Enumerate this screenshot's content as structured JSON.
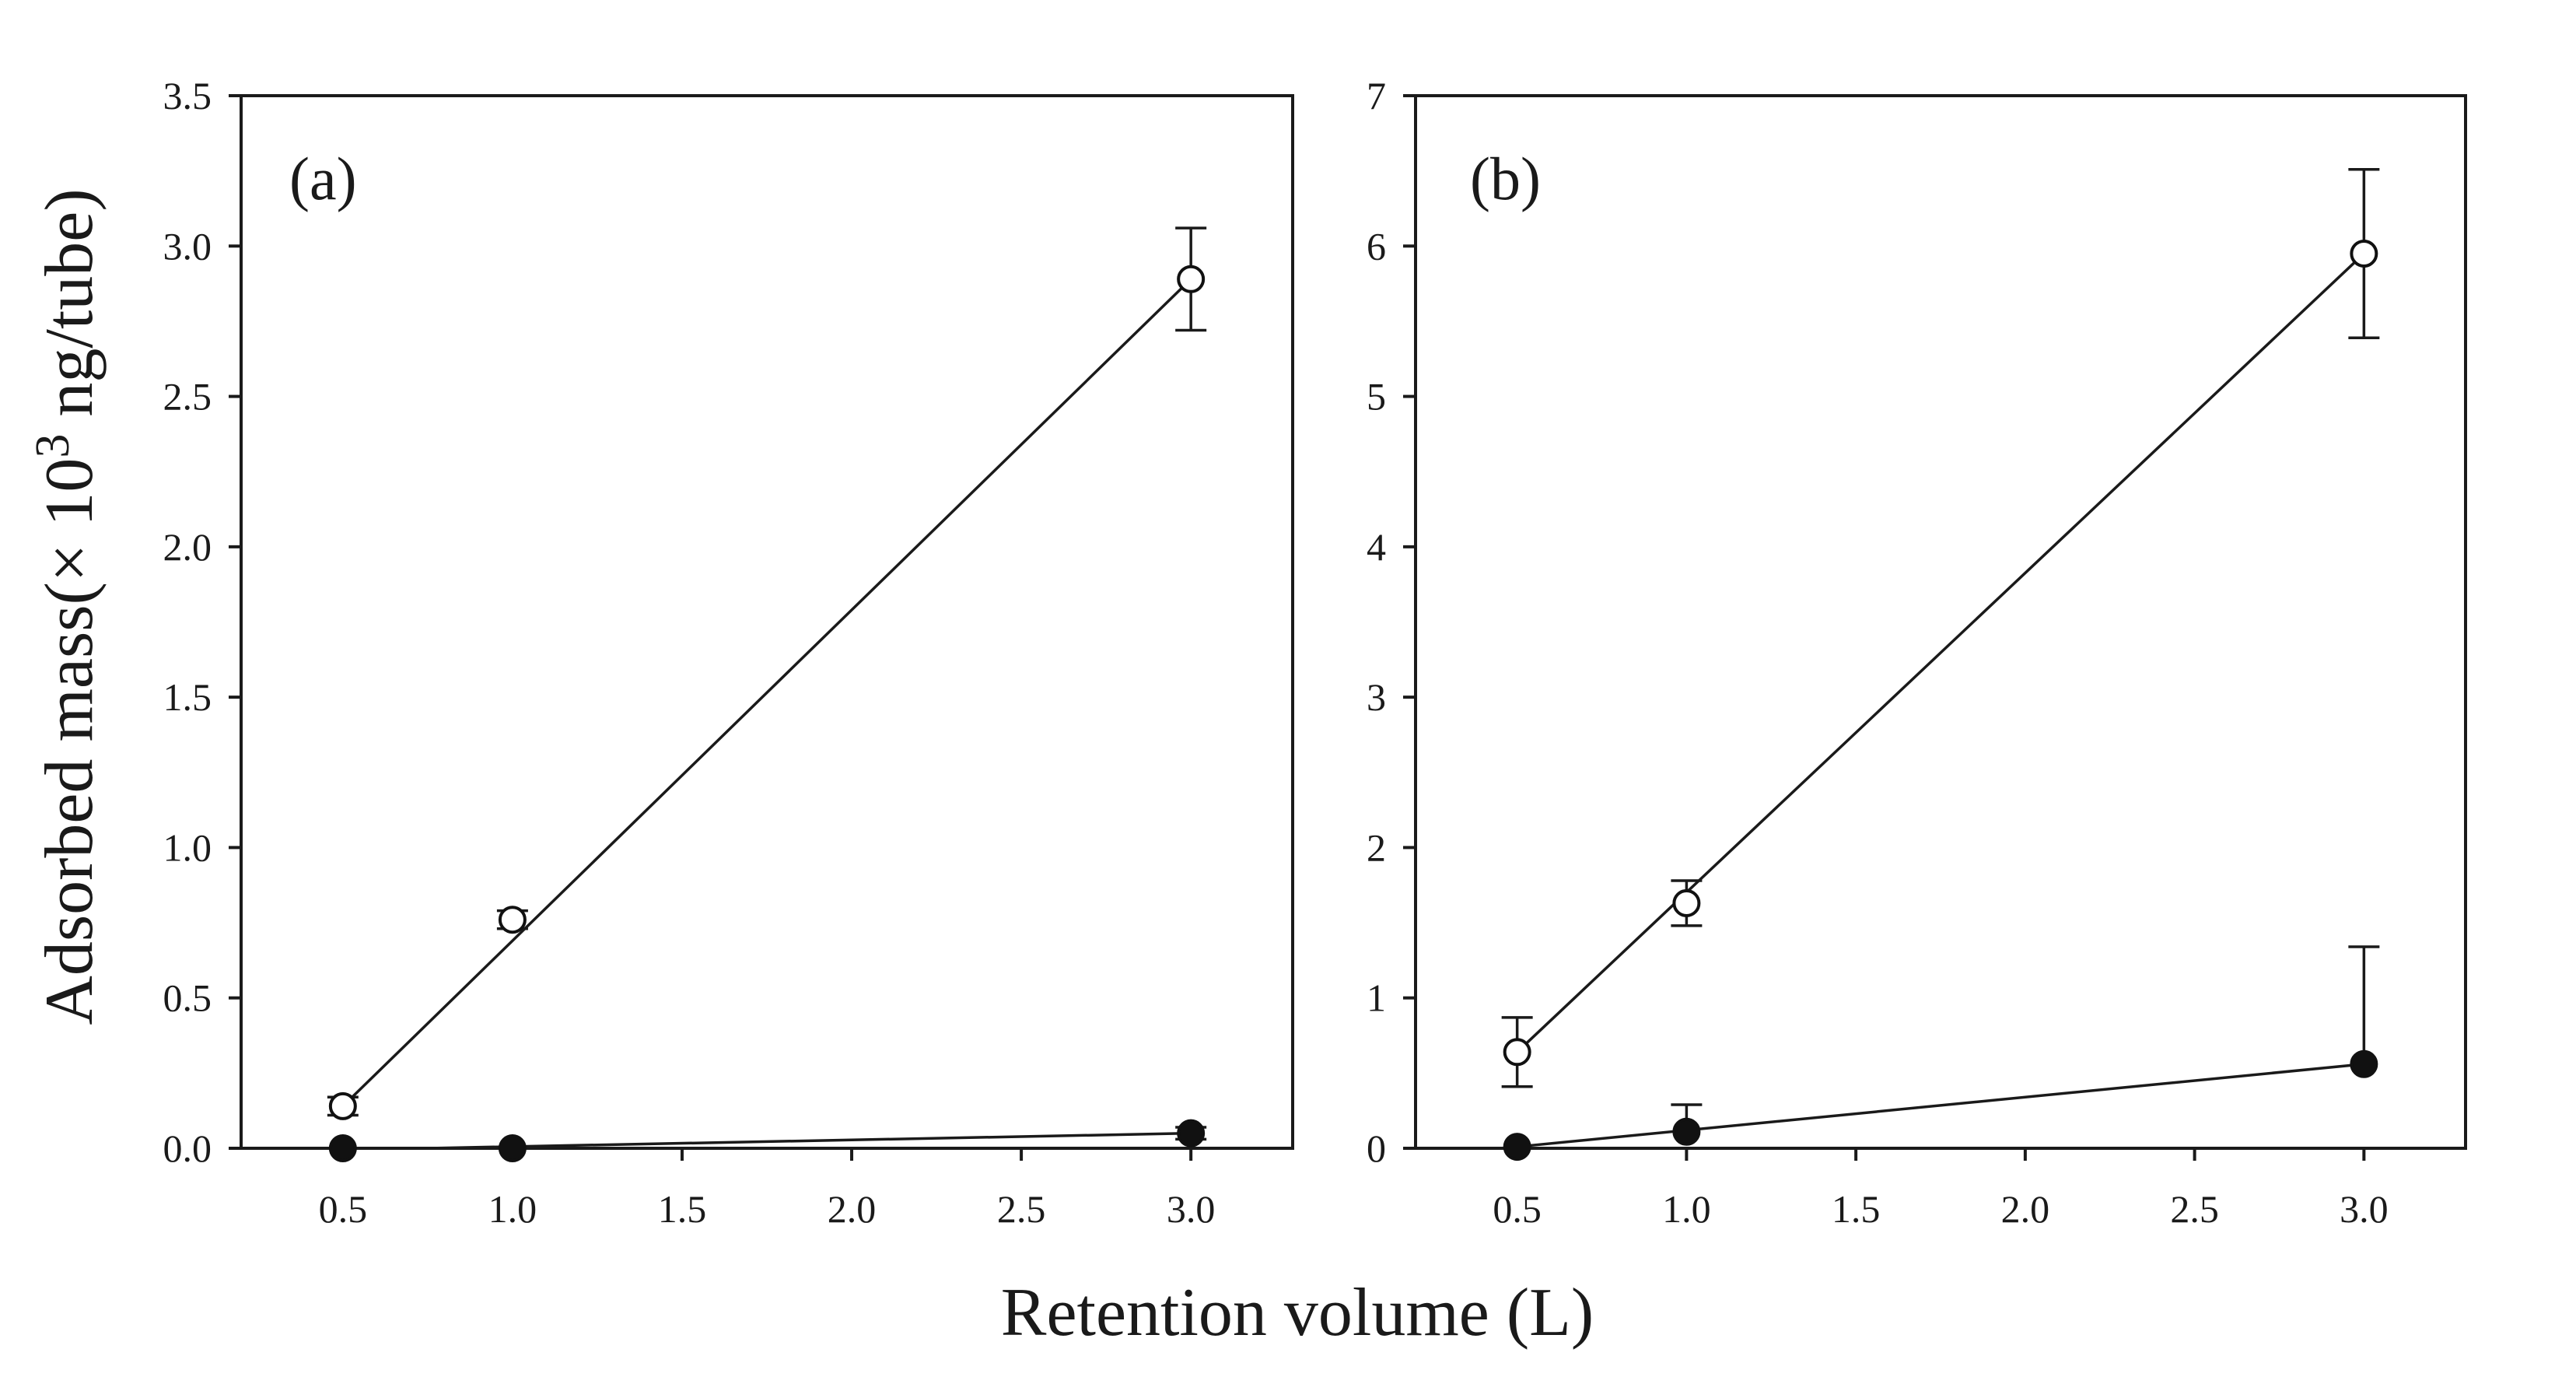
{
  "figure": {
    "ylabel_main": "Adsorbed mass(× 10",
    "ylabel_sup": "3",
    "ylabel_tail": " ng/tube)",
    "xlabel": "Retention volume (L)"
  },
  "chart_data": [
    {
      "type": "scatter",
      "panel_label": "(a)",
      "xlim": [
        0.2,
        3.3
      ],
      "ylim": [
        0,
        3.5
      ],
      "xticks": [
        0.5,
        1.0,
        1.5,
        2.0,
        2.5,
        3.0
      ],
      "xtick_labels": [
        "0.5",
        "1.0",
        "1.5",
        "2.0",
        "2.5",
        "3.0"
      ],
      "yticks": [
        0,
        0.5,
        1,
        1.5,
        2,
        2.5,
        3,
        3.5
      ],
      "ytick_labels": [
        "0.0",
        "0.5",
        "1.0",
        "1.5",
        "2.0",
        "2.5",
        "3.0",
        "3.5"
      ],
      "grid": false,
      "series": [
        {
          "marker": "open-circle",
          "x": [
            0.5,
            1.0,
            3.0
          ],
          "y": [
            0.14,
            0.76,
            2.89
          ],
          "yerr": [
            0.03,
            0.03,
            0.17
          ],
          "fit": [
            [
              0.5,
              0.14
            ],
            [
              3.0,
              2.89
            ]
          ]
        },
        {
          "marker": "filled-circle",
          "x": [
            0.5,
            1.0,
            3.0
          ],
          "y": [
            0.0,
            0.0,
            0.05
          ],
          "yerr": [
            0,
            0,
            0.02
          ],
          "fit": [
            [
              0.75,
              0.0
            ],
            [
              3.0,
              0.05
            ]
          ]
        }
      ]
    },
    {
      "type": "scatter",
      "panel_label": "(b)",
      "xlim": [
        0.2,
        3.3
      ],
      "ylim": [
        0,
        7
      ],
      "xticks": [
        0.5,
        1.0,
        1.5,
        2.0,
        2.5,
        3.0
      ],
      "xtick_labels": [
        "0.5",
        "1.0",
        "1.5",
        "2.0",
        "2.5",
        "3.0"
      ],
      "yticks": [
        0,
        1,
        2,
        3,
        4,
        5,
        6,
        7
      ],
      "ytick_labels": [
        "0",
        "1",
        "2",
        "3",
        "4",
        "5",
        "6",
        "7"
      ],
      "grid": false,
      "series": [
        {
          "marker": "open-circle",
          "x": [
            0.5,
            1.0,
            3.0
          ],
          "y": [
            0.64,
            1.63,
            5.95
          ],
          "yerr": [
            0.23,
            0.15,
            0.56
          ],
          "fit": [
            [
              0.5,
              0.64
            ],
            [
              3.0,
              5.95
            ]
          ]
        },
        {
          "marker": "filled-circle",
          "x": [
            0.5,
            1.0,
            3.0
          ],
          "y": [
            0.01,
            0.11,
            0.56
          ],
          "yerr": [
            0,
            0.18,
            0.78
          ],
          "yerr_upper_only": true,
          "fit": [
            [
              0.5,
              0.01
            ],
            [
              3.0,
              0.56
            ]
          ]
        }
      ]
    }
  ]
}
